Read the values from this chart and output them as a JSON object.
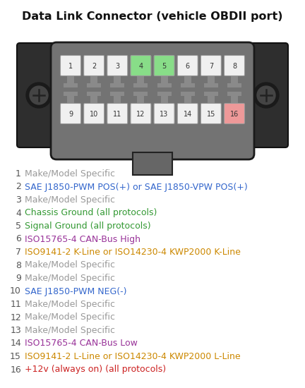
{
  "title": "Data Link Connector (vehicle OBDII port)",
  "bg_color": "#ffffff",
  "connector_body_color": "#737373",
  "connector_border_color": "#2a2a2a",
  "screw_housing_color": "#2e2e2e",
  "pin_default_bg": "#f0f0f0",
  "pin_border_color": "#aaaaaa",
  "pin_top_row": [
    "1",
    "2",
    "3",
    "4",
    "5",
    "6",
    "7",
    "8"
  ],
  "pin_bottom_row": [
    "9",
    "10",
    "11",
    "12",
    "13",
    "14",
    "15",
    "16"
  ],
  "pin4_color": "#88dd88",
  "pin5_color": "#88dd88",
  "pin16_color": "#ee9999",
  "connector_tab_color": "#666666",
  "entries": [
    {
      "num": "1",
      "text": "Make/Model Specific",
      "color": "#999999"
    },
    {
      "num": "2",
      "text": "SAE J1850-PWM POS(+) or SAE J1850-VPW POS(+)",
      "color": "#3366cc"
    },
    {
      "num": "3",
      "text": "Make/Model Specific",
      "color": "#999999"
    },
    {
      "num": "4",
      "text": "Chassis Ground (all protocols)",
      "color": "#339933"
    },
    {
      "num": "5",
      "text": "Signal Ground (all protocols)",
      "color": "#339933"
    },
    {
      "num": "6",
      "text": "ISO15765-4 CAN-Bus High",
      "color": "#993399"
    },
    {
      "num": "7",
      "text": "ISO9141-2 K-Line or ISO14230-4 KWP2000 K-Line",
      "color": "#cc8800"
    },
    {
      "num": "8",
      "text": "Make/Model Specific",
      "color": "#999999"
    },
    {
      "num": "9",
      "text": "Make/Model Specific",
      "color": "#999999"
    },
    {
      "num": "10",
      "text": "SAE J1850-PWM NEG(-)",
      "color": "#3366cc"
    },
    {
      "num": "11",
      "text": "Make/Model Specific",
      "color": "#999999"
    },
    {
      "num": "12",
      "text": "Make/Model Specific",
      "color": "#999999"
    },
    {
      "num": "13",
      "text": "Make/Model Specific",
      "color": "#999999"
    },
    {
      "num": "14",
      "text": "ISO15765-4 CAN-Bus Low",
      "color": "#993399"
    },
    {
      "num": "15",
      "text": "ISO9141-2 L-Line or ISO14230-4 KWP2000 L-Line",
      "color": "#cc8800"
    },
    {
      "num": "16",
      "text": "+12v (always on) (all protocols)",
      "color": "#cc2222"
    }
  ],
  "figsize": [
    4.32,
    5.5
  ],
  "dpi": 100
}
